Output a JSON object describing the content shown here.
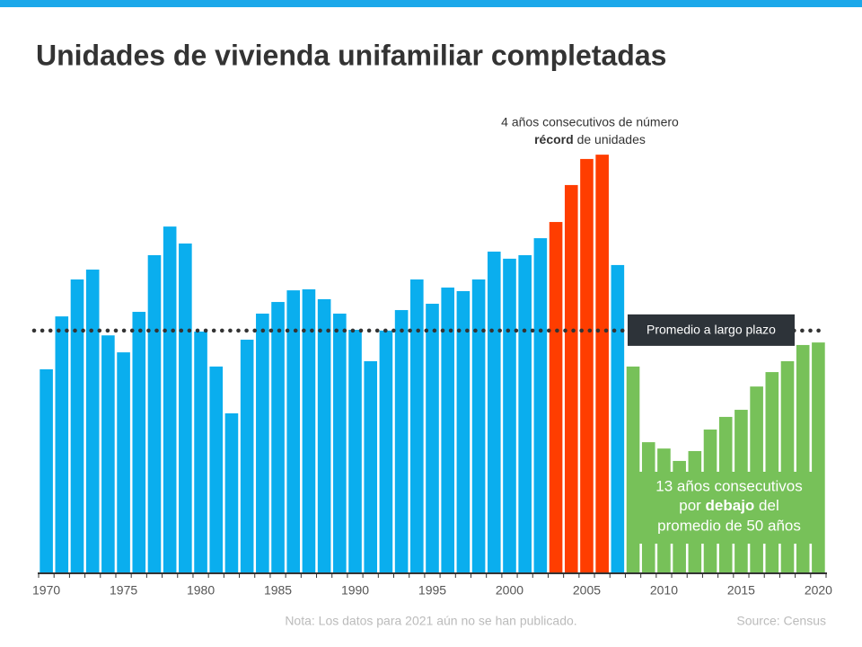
{
  "chart_data": {
    "type": "bar",
    "title": "Unidades de vivienda unifamiliar completadas",
    "categories": [
      1970,
      null,
      null,
      null,
      null,
      1975,
      null,
      null,
      null,
      null,
      1980,
      null,
      null,
      null,
      null,
      1985,
      null,
      null,
      null,
      null,
      1990,
      null,
      null,
      null,
      null,
      1995,
      null,
      null,
      null,
      null,
      2000,
      null,
      null,
      null,
      null,
      2005,
      null,
      null,
      null,
      null,
      2010,
      null,
      null,
      null,
      null,
      2015,
      null,
      null,
      null,
      null,
      2020
    ],
    "values": [
      806,
      1015,
      1161,
      1200,
      940,
      873,
      1033,
      1257,
      1370,
      1303,
      955,
      817,
      632,
      923,
      1026,
      1072,
      1118,
      1122,
      1083,
      1026,
      962,
      838,
      959,
      1040,
      1161,
      1065,
      1129,
      1115,
      1161,
      1271,
      1243,
      1257,
      1324,
      1388,
      1534,
      1637,
      1654,
      1218,
      817,
      518,
      493,
      444,
      483,
      568,
      618,
      646,
      738,
      795,
      838,
      902,
      912
    ],
    "colors": [
      "#0aaeee",
      "#0aaeee",
      "#0aaeee",
      "#0aaeee",
      "#0aaeee",
      "#0aaeee",
      "#0aaeee",
      "#0aaeee",
      "#0aaeee",
      "#0aaeee",
      "#0aaeee",
      "#0aaeee",
      "#0aaeee",
      "#0aaeee",
      "#0aaeee",
      "#0aaeee",
      "#0aaeee",
      "#0aaeee",
      "#0aaeee",
      "#0aaeee",
      "#0aaeee",
      "#0aaeee",
      "#0aaeee",
      "#0aaeee",
      "#0aaeee",
      "#0aaeee",
      "#0aaeee",
      "#0aaeee",
      "#0aaeee",
      "#0aaeee",
      "#0aaeee",
      "#0aaeee",
      "#0aaeee",
      "#ff3d00",
      "#ff3d00",
      "#ff3d00",
      "#ff3d00",
      "#0aaeee",
      "#77c159",
      "#77c159",
      "#77c159",
      "#77c159",
      "#77c159",
      "#77c159",
      "#77c159",
      "#77c159",
      "#77c159",
      "#77c159",
      "#77c159",
      "#77c159",
      "#77c159"
    ],
    "ylim": [
      0,
      1800
    ],
    "reference_line": {
      "value": 959,
      "label": "Promedio a largo plazo"
    },
    "annotation_record": {
      "line1": "4 años consecutivos de número",
      "bold": "récord",
      "rest": " de unidades"
    },
    "annotation_below": {
      "line1": "13 años consecutivos",
      "pre": "por ",
      "bold": "debajo",
      "post": " del",
      "line3": "promedio de 50 años"
    },
    "note": "Nota: Los datos para 2021 aún no se han publicado.",
    "source": "Source: Census"
  }
}
